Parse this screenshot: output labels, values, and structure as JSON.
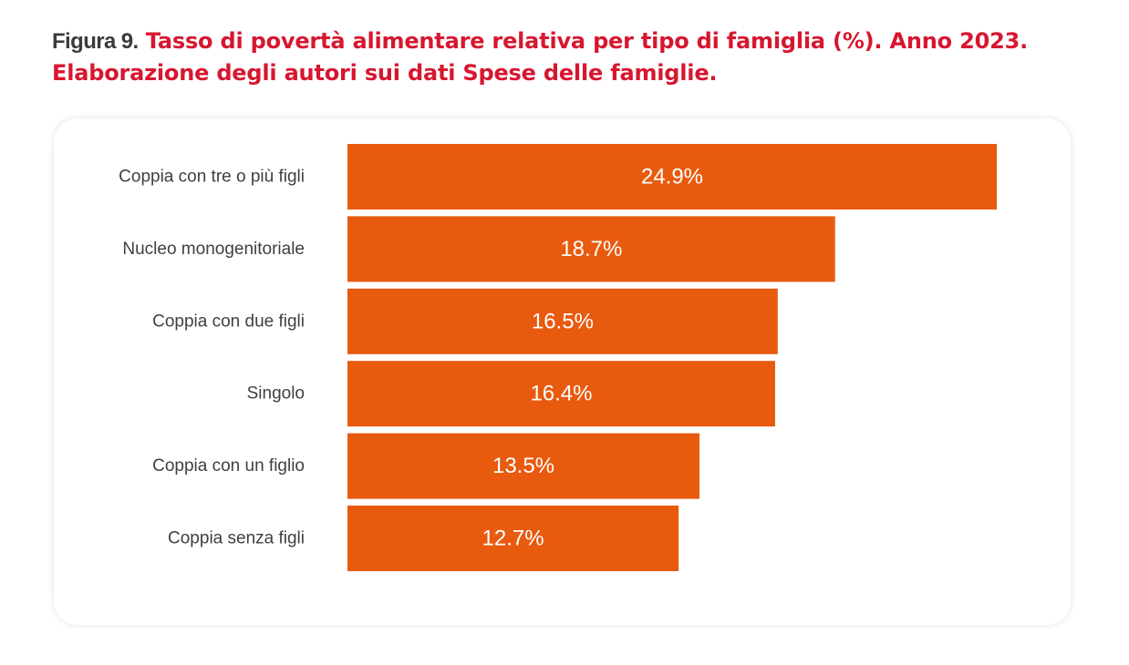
{
  "caption": {
    "label": "Figura 9.",
    "title": "Tasso di povertà alimentare relativa per tipo di famiglia (%). Anno 2023. Elaborazione degli autori sui dati Spese delle famiglie."
  },
  "colors": {
    "bar": "#e85a0e",
    "title": "#d7172f",
    "label": "#404040",
    "value_label": "#ffffff"
  },
  "chart_data": {
    "type": "bar",
    "orientation": "horizontal",
    "categories": [
      "Coppia con tre o più figli",
      "Nucleo monogenitoriale",
      "Coppia con due figli",
      "Singolo",
      "Coppia con un figlio",
      "Coppia senza figli"
    ],
    "values": [
      24.9,
      18.7,
      16.5,
      16.4,
      13.5,
      12.7
    ],
    "value_labels": [
      "24.9%",
      "18.7%",
      "16.5%",
      "16.4%",
      "13.5%",
      "12.7%"
    ],
    "title": "",
    "xlabel": "",
    "ylabel": "",
    "xlim": [
      0,
      25
    ],
    "grid": false,
    "legend": "none"
  }
}
